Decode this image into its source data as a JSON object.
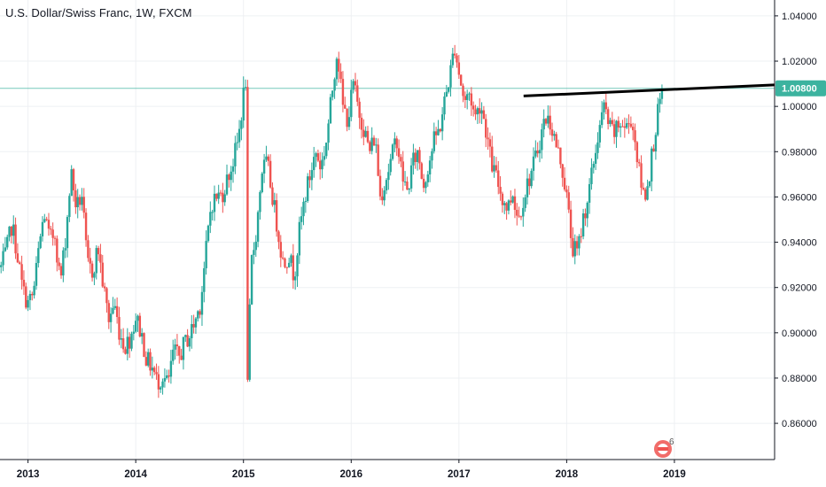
{
  "header": {
    "title": "U.S. Dollar/Swiss Franc, 1W, FXCM"
  },
  "colors": {
    "up": "#26a69a",
    "down": "#ef5350",
    "grid": "#eef0f3",
    "axis": "#131722",
    "price_line": "#3cb39f",
    "trendline": "#000000"
  },
  "icons": {
    "logo": "tradingview-logo-icon"
  },
  "logo": {
    "superscript": "6"
  },
  "chart_data": {
    "type": "candlestick",
    "title": "U.S. Dollar/Swiss Franc, 1W, FXCM",
    "x_ticks": [
      "2013",
      "2014",
      "2015",
      "2016",
      "2017",
      "2018",
      "2019"
    ],
    "y_ticks": [
      "0.86000",
      "0.88000",
      "0.90000",
      "0.92000",
      "0.94000",
      "0.96000",
      "0.98000",
      "1.00000",
      "1.02000",
      "1.04000"
    ],
    "ylim": [
      0.844,
      1.047
    ],
    "xlim": [
      2012.74,
      2019.93
    ],
    "last_price": "1.00800",
    "last_price_value": 1.008,
    "trendline": {
      "x": [
        2017.6,
        2019.93
      ],
      "y": [
        1.0046,
        1.0095
      ]
    },
    "grid": true,
    "anchors": [
      [
        2012.75,
        0.929
      ],
      [
        2012.8,
        0.936
      ],
      [
        2012.85,
        0.948
      ],
      [
        2012.9,
        0.935
      ],
      [
        2012.95,
        0.919
      ],
      [
        2013.0,
        0.913
      ],
      [
        2013.05,
        0.917
      ],
      [
        2013.1,
        0.937
      ],
      [
        2013.15,
        0.953
      ],
      [
        2013.2,
        0.941
      ],
      [
        2013.25,
        0.944
      ],
      [
        2013.3,
        0.922
      ],
      [
        2013.35,
        0.943
      ],
      [
        2013.4,
        0.971
      ],
      [
        2013.45,
        0.955
      ],
      [
        2013.5,
        0.961
      ],
      [
        2013.55,
        0.93
      ],
      [
        2013.6,
        0.927
      ],
      [
        2013.65,
        0.938
      ],
      [
        2013.7,
        0.92
      ],
      [
        2013.75,
        0.906
      ],
      [
        2013.8,
        0.913
      ],
      [
        2013.85,
        0.9
      ],
      [
        2013.9,
        0.894
      ],
      [
        2013.95,
        0.898
      ],
      [
        2014.0,
        0.907
      ],
      [
        2014.05,
        0.9
      ],
      [
        2014.1,
        0.888
      ],
      [
        2014.15,
        0.885
      ],
      [
        2014.2,
        0.878
      ],
      [
        2014.25,
        0.881
      ],
      [
        2014.3,
        0.877
      ],
      [
        2014.35,
        0.892
      ],
      [
        2014.4,
        0.889
      ],
      [
        2014.45,
        0.895
      ],
      [
        2014.5,
        0.899
      ],
      [
        2014.55,
        0.905
      ],
      [
        2014.6,
        0.913
      ],
      [
        2014.65,
        0.935
      ],
      [
        2014.7,
        0.957
      ],
      [
        2014.75,
        0.96
      ],
      [
        2014.8,
        0.961
      ],
      [
        2014.85,
        0.968
      ],
      [
        2014.9,
        0.975
      ],
      [
        2014.95,
        0.985
      ],
      [
        2015.0,
        1.005
      ],
      [
        2015.02,
        1.012
      ],
      [
        2015.03,
        0.86
      ],
      [
        2015.07,
        0.93
      ],
      [
        2015.12,
        0.945
      ],
      [
        2015.17,
        0.972
      ],
      [
        2015.22,
        0.975
      ],
      [
        2015.27,
        0.96
      ],
      [
        2015.32,
        0.945
      ],
      [
        2015.37,
        0.93
      ],
      [
        2015.42,
        0.935
      ],
      [
        2015.47,
        0.925
      ],
      [
        2015.52,
        0.945
      ],
      [
        2015.57,
        0.96
      ],
      [
        2015.62,
        0.97
      ],
      [
        2015.67,
        0.98
      ],
      [
        2015.72,
        0.973
      ],
      [
        2015.77,
        0.985
      ],
      [
        2015.82,
        1.005
      ],
      [
        2015.87,
        1.026
      ],
      [
        2015.92,
        1.0
      ],
      [
        2015.97,
        0.994
      ],
      [
        2016.02,
        1.01
      ],
      [
        2016.07,
        0.998
      ],
      [
        2016.12,
        0.99
      ],
      [
        2016.17,
        0.98
      ],
      [
        2016.22,
        0.987
      ],
      [
        2016.27,
        0.96
      ],
      [
        2016.32,
        0.968
      ],
      [
        2016.37,
        0.976
      ],
      [
        2016.42,
        0.987
      ],
      [
        2016.47,
        0.97
      ],
      [
        2016.52,
        0.962
      ],
      [
        2016.57,
        0.975
      ],
      [
        2016.62,
        0.98
      ],
      [
        2016.67,
        0.965
      ],
      [
        2016.72,
        0.975
      ],
      [
        2016.77,
        0.985
      ],
      [
        2016.82,
        0.99
      ],
      [
        2016.87,
        1.003
      ],
      [
        2016.92,
        1.015
      ],
      [
        2016.96,
        1.027
      ],
      [
        2017.0,
        1.015
      ],
      [
        2017.05,
        1.002
      ],
      [
        2017.1,
        1.006
      ],
      [
        2017.15,
        0.995
      ],
      [
        2017.2,
        1.002
      ],
      [
        2017.25,
        0.99
      ],
      [
        2017.3,
        0.975
      ],
      [
        2017.35,
        0.968
      ],
      [
        2017.4,
        0.96
      ],
      [
        2017.45,
        0.955
      ],
      [
        2017.5,
        0.962
      ],
      [
        2017.55,
        0.95
      ],
      [
        2017.6,
        0.96
      ],
      [
        2017.65,
        0.968
      ],
      [
        2017.7,
        0.975
      ],
      [
        2017.75,
        0.985
      ],
      [
        2017.8,
        0.995
      ],
      [
        2017.85,
        0.993
      ],
      [
        2017.9,
        0.983
      ],
      [
        2017.95,
        0.975
      ],
      [
        2018.0,
        0.96
      ],
      [
        2018.05,
        0.938
      ],
      [
        2018.1,
        0.935
      ],
      [
        2018.15,
        0.95
      ],
      [
        2018.2,
        0.96
      ],
      [
        2018.25,
        0.975
      ],
      [
        2018.3,
        0.99
      ],
      [
        2018.35,
        1.0
      ],
      [
        2018.4,
        0.99
      ],
      [
        2018.45,
        0.988
      ],
      [
        2018.5,
        0.993
      ],
      [
        2018.55,
        0.99
      ],
      [
        2018.6,
        0.995
      ],
      [
        2018.65,
        0.98
      ],
      [
        2018.68,
        0.968
      ],
      [
        2018.72,
        0.96
      ],
      [
        2018.76,
        0.968
      ],
      [
        2018.8,
        0.982
      ],
      [
        2018.84,
        0.995
      ],
      [
        2018.87,
        1.003
      ],
      [
        2018.89,
        1.008
      ]
    ]
  }
}
